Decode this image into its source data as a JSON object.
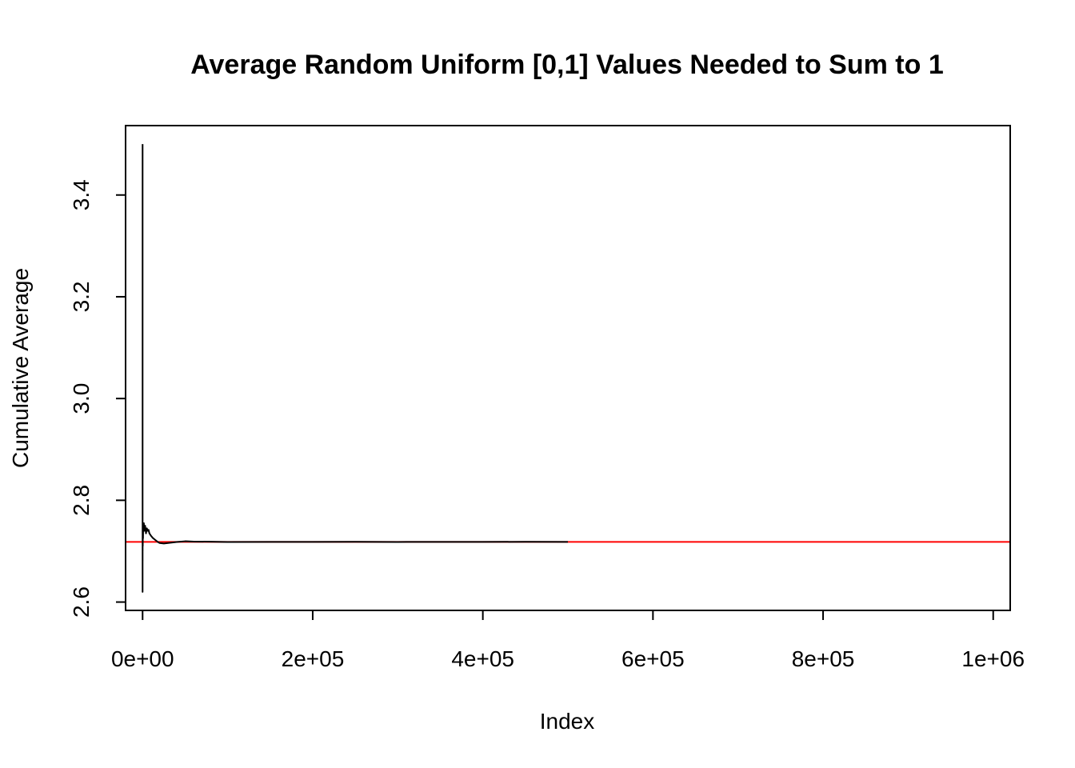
{
  "chart_data": {
    "type": "line",
    "title": "Average Random Uniform [0,1] Values Needed to Sum to 1",
    "xlabel": "Index",
    "ylabel": "Cumulative Average",
    "xlim": [
      -20000,
      1020000
    ],
    "ylim": [
      2.5836,
      3.5364
    ],
    "x_ticks": [
      {
        "value": 0,
        "label": "0e+00"
      },
      {
        "value": 200000,
        "label": "2e+05"
      },
      {
        "value": 400000,
        "label": "4e+05"
      },
      {
        "value": 600000,
        "label": "6e+05"
      },
      {
        "value": 800000,
        "label": "8e+05"
      },
      {
        "value": 1000000,
        "label": "1e+06"
      }
    ],
    "y_ticks": [
      {
        "value": 2.6,
        "label": "2.6"
      },
      {
        "value": 2.8,
        "label": "2.8"
      },
      {
        "value": 3.0,
        "label": "3.0"
      },
      {
        "value": 3.2,
        "label": "3.2"
      },
      {
        "value": 3.4,
        "label": "3.4"
      }
    ],
    "series": [
      {
        "color": "#000000",
        "x": [
          1,
          2,
          3,
          4,
          5,
          6,
          8,
          10,
          15,
          20,
          30,
          50,
          80,
          100,
          150,
          200,
          300,
          500,
          700,
          1000,
          1500,
          2000,
          3000,
          4000,
          5000,
          6000,
          7000,
          8000,
          10000,
          12000,
          15000,
          18000,
          20000,
          25000,
          30000,
          40000,
          50000,
          60000,
          80000,
          100000,
          150000,
          200000,
          250000,
          300000,
          350000,
          400000,
          450000,
          500000
        ],
        "y": [
          3.5,
          2.62,
          3.1,
          2.85,
          2.9,
          2.75,
          2.8,
          2.7,
          2.76,
          2.68,
          2.73,
          2.7,
          2.75,
          2.72,
          2.74,
          2.71,
          2.73,
          2.725,
          2.745,
          2.75,
          2.755,
          2.74,
          2.75,
          2.735,
          2.745,
          2.74,
          2.742,
          2.735,
          2.73,
          2.726,
          2.722,
          2.718,
          2.716,
          2.715,
          2.716,
          2.718,
          2.7195,
          2.7189,
          2.7186,
          2.718,
          2.7183,
          2.7182,
          2.7185,
          2.7181,
          2.7183,
          2.7182,
          2.7184,
          2.7183
        ]
      }
    ],
    "reference_line": {
      "y": 2.71828,
      "color": "#ff0000"
    }
  }
}
